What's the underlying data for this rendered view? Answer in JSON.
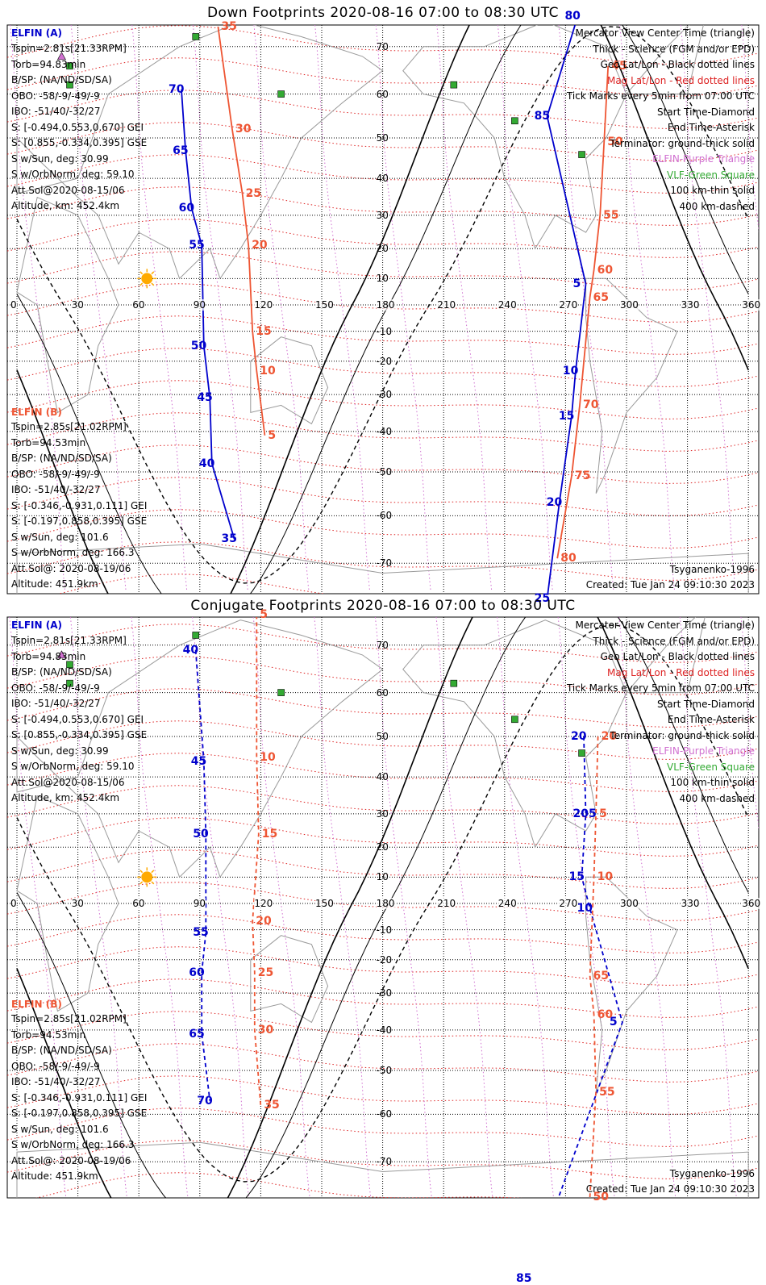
{
  "panels": [
    {
      "id": "down",
      "title": "Down Footprints 2020-08-16 07:00 to 08:30 UTC",
      "elfin_a": {
        "label": "ELFIN (A)",
        "lines": [
          "Tspin=2.81s[21.33RPM]",
          "Torb=94.83min",
          "B/SP: (NA/ND/SD/SA)",
          "OBO: -58/-9/-49/-9",
          "IBO: -51/40/-32/27",
          "S: [-0.494,0.553,0.670] GEI",
          "S: [0.855,-0.334,0.395] GSE",
          "S w/Sun, deg: 30.99",
          "S w/OrbNorm, deg: 59.10",
          "Att.Sol@2020-08-15/06",
          "Altitude, km: 452.4km"
        ]
      },
      "elfin_b": {
        "label": "ELFIN (B)",
        "lines": [
          "Tspin=2.85s[21.02RPM]",
          "Torb=94.53min",
          "B/SP: (NA/ND/SD/SA)",
          "OBO: -58/-9/-49/-9",
          "IBO: -51/40/-32/27",
          "S: [-0.346,-0.931,0.111] GEI",
          "S: [-0.197,0.858,0.395] GSE",
          "S w/Sun, deg: 101.6",
          "S w/OrbNorm, deg: 166.3",
          "Att.Sol@: 2020-08-19/06",
          "Altitude: 451.9km"
        ]
      },
      "legend": [
        "Mercator View Center Time (triangle)",
        "Thick - Science (FGM and/or EPD)",
        "Geo Lat/Lon - Black dotted lines",
        "Mag Lat/Lon - Red dotted lines",
        "Tick Marks every 5min from 07:00 UTC",
        "Start Time-Diamond",
        "End Time-Asterisk",
        "Terminator: ground-thick solid",
        "ELFIN-Purple Triangle",
        "VLF-Green Square",
        "100 km-thin solid",
        "400 km-dashed"
      ],
      "model": "Tsyganenko-1996",
      "created": "Created: Tue Jan 24 09:10:30 2023",
      "track_a_labels": [
        {
          "t": "80",
          "lon": 272,
          "lat": 76
        },
        {
          "t": "85",
          "lon": 257,
          "lat": 55
        },
        {
          "t": "5",
          "lon": 276,
          "lat": 8
        },
        {
          "t": "10",
          "lon": 271,
          "lat": -23
        },
        {
          "t": "15",
          "lon": 269,
          "lat": -36
        },
        {
          "t": "20",
          "lon": 263,
          "lat": -57
        },
        {
          "t": "25",
          "lon": 257,
          "lat": -77
        },
        {
          "t": "70",
          "lon": 77,
          "lat": 61
        },
        {
          "t": "65",
          "lon": 79,
          "lat": 47
        },
        {
          "t": "60",
          "lon": 82,
          "lat": 32
        },
        {
          "t": "55",
          "lon": 87,
          "lat": 21
        },
        {
          "t": "50",
          "lon": 88,
          "lat": -15
        },
        {
          "t": "45",
          "lon": 91,
          "lat": -31
        },
        {
          "t": "40",
          "lon": 92,
          "lat": -48
        },
        {
          "t": "35",
          "lon": 103,
          "lat": -65
        }
      ],
      "track_b_labels": [
        {
          "t": "35",
          "lon": 95,
          "lat": 74
        },
        {
          "t": "30",
          "lon": 102,
          "lat": 52
        },
        {
          "t": "25",
          "lon": 107,
          "lat": 36
        },
        {
          "t": "20",
          "lon": 110,
          "lat": 21
        },
        {
          "t": "15",
          "lon": 112,
          "lat": -10
        },
        {
          "t": "10",
          "lon": 114,
          "lat": -23
        },
        {
          "t": "5",
          "lon": 118,
          "lat": -41
        },
        {
          "t": "45",
          "lon": 287,
          "lat": 66
        },
        {
          "t": "50",
          "lon": 285,
          "lat": 49
        },
        {
          "t": "55",
          "lon": 283,
          "lat": 30
        },
        {
          "t": "60",
          "lon": 280,
          "lat": 13
        },
        {
          "t": "65",
          "lon": 278,
          "lat": 3
        },
        {
          "t": "70",
          "lon": 273,
          "lat": -33
        },
        {
          "t": "75",
          "lon": 269,
          "lat": -51
        },
        {
          "t": "80",
          "lon": 262,
          "lat": -69
        }
      ]
    },
    {
      "id": "conj",
      "title": "Conjugate Footprints 2020-08-16 07:00 to 08:30 UTC",
      "elfin_a": {
        "label": "ELFIN (A)",
        "lines": [
          "Tspin=2.81s[21.33RPM]",
          "Torb=94.83min",
          "B/SP: (NA/ND/SD/SA)",
          "OBO: -58/-9/-49/-9",
          "IBO: -51/40/-32/27",
          "S: [-0.494,0.553,0.670] GEI",
          "S: [0.855,-0.334,0.395] GSE",
          "S w/Sun, deg: 30.99",
          "S w/OrbNorm, deg: 59.10",
          "Att.Sol@2020-08-15/06",
          "Altitude, km: 452.4km"
        ]
      },
      "elfin_b": {
        "label": "ELFIN (B)",
        "lines": [
          "Tspin=2.85s[21.02RPM]",
          "Torb=94.53min",
          "B/SP: (NA/ND/SD/SA)",
          "OBO: -58/-9/-49/-9",
          "IBO: -51/40/-32/27",
          "S: [-0.346,-0.931,0.111] GEI",
          "S: [-0.197,0.858,0.395] GSE",
          "S w/Sun, deg: 101.6",
          "S w/OrbNorm, deg: 166.3",
          "Att.Sol@: 2020-08-19/06",
          "Altitude: 451.9km"
        ]
      },
      "legend": [
        "Mercator View Center Time (triangle)",
        "Thick - Science (FGM and/or EPD)",
        "Geo Lat/Lon - Black dotted lines",
        "Mag Lat/Lon - Red dotted lines",
        "Tick Marks every 5min from 07:00 UTC",
        "Start Time-Diamond",
        "End Time-Asterisk",
        "Terminator: ground-thick solid",
        "ELFIN-Purple Triangle",
        "VLF-Green Square",
        "100 km-thin solid",
        "400 km-dashed"
      ],
      "model": "Tsyganenko-1996",
      "created": "Created: Tue Jan 24 09:10:30 2023",
      "track_a_labels": [
        {
          "t": "40",
          "lon": 84,
          "lat": 69
        },
        {
          "t": "45",
          "lon": 88,
          "lat": 44
        },
        {
          "t": "50",
          "lon": 89,
          "lat": 24
        },
        {
          "t": "55",
          "lon": 89,
          "lat": -11
        },
        {
          "t": "60",
          "lon": 87,
          "lat": -24
        },
        {
          "t": "65",
          "lon": 87,
          "lat": -41
        },
        {
          "t": "70",
          "lon": 91,
          "lat": -57
        },
        {
          "t": "20",
          "lon": 275,
          "lat": 50
        },
        {
          "t": "205",
          "lon": 276,
          "lat": 30
        },
        {
          "t": "15",
          "lon": 274,
          "lat": 10
        },
        {
          "t": "10",
          "lon": 278,
          "lat": -2
        },
        {
          "t": "5",
          "lon": 294,
          "lat": -38
        },
        {
          "t": "85",
          "lon": 248,
          "lat": -92
        }
      ],
      "track_b_labels": [
        {
          "t": "5",
          "lon": 114,
          "lat": 76
        },
        {
          "t": "10",
          "lon": 114,
          "lat": 45
        },
        {
          "t": "15",
          "lon": 115,
          "lat": 24
        },
        {
          "t": "20",
          "lon": 112,
          "lat": -7
        },
        {
          "t": "25",
          "lon": 113,
          "lat": -24
        },
        {
          "t": "30",
          "lon": 113,
          "lat": -40
        },
        {
          "t": "35",
          "lon": 116,
          "lat": -58
        },
        {
          "t": "20",
          "lon": 282,
          "lat": 50
        },
        {
          "t": "5",
          "lon": 281,
          "lat": 30
        },
        {
          "t": "10",
          "lon": 280,
          "lat": 10
        },
        {
          "t": "65",
          "lon": 278,
          "lat": -25
        },
        {
          "t": "60",
          "lon": 280,
          "lat": -36
        },
        {
          "t": "55",
          "lon": 281,
          "lat": -55
        },
        {
          "t": "50",
          "lon": 278,
          "lat": -77
        }
      ]
    }
  ],
  "lon_ticks": [
    "0",
    "30",
    "60",
    "90",
    "120",
    "150",
    "180",
    "210",
    "240",
    "270",
    "300",
    "330",
    "360"
  ],
  "lat_ticks": [
    "70",
    "60",
    "50",
    "40",
    "30",
    "20",
    "10",
    "-10",
    "-20",
    "-30",
    "-40",
    "-50",
    "-60",
    "-70"
  ],
  "colors": {
    "sat_a": "#0000cc",
    "sat_b": "#ee5533",
    "mag_grid": "#dd2222",
    "elfin_marker": "#d070d0",
    "vlf_marker": "#33aa33",
    "sun": "#ffaa00"
  }
}
